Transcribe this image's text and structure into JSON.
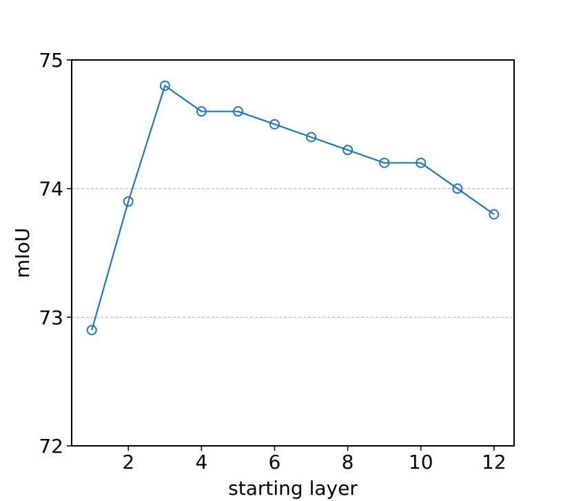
{
  "chart_data": {
    "type": "line",
    "title": "",
    "xlabel": "starting layer",
    "ylabel": "mIoU",
    "x": [
      1,
      2,
      3,
      4,
      5,
      6,
      7,
      8,
      9,
      10,
      11,
      12
    ],
    "series": [
      {
        "values": [
          72.9,
          73.9,
          74.8,
          74.6,
          74.6,
          74.5,
          74.4,
          74.3,
          74.2,
          74.2,
          74.0,
          73.8
        ],
        "color": "#1f77b4",
        "marker": "open-circle"
      }
    ],
    "xlim": [
      0.45,
      12.55
    ],
    "ylim": [
      72,
      75
    ],
    "xticks": [
      2,
      4,
      6,
      8,
      10,
      12
    ],
    "yticks": [
      72,
      73,
      74,
      75
    ],
    "xtick_labels": [
      "2",
      "4",
      "6",
      "8",
      "10",
      "12"
    ],
    "ytick_labels": [
      "72",
      "73",
      "74",
      "75"
    ],
    "grid": {
      "axis": "y",
      "style": "dashed",
      "lines_at": [
        73,
        74
      ],
      "color": "#b0b0b0"
    },
    "legend": "none"
  }
}
